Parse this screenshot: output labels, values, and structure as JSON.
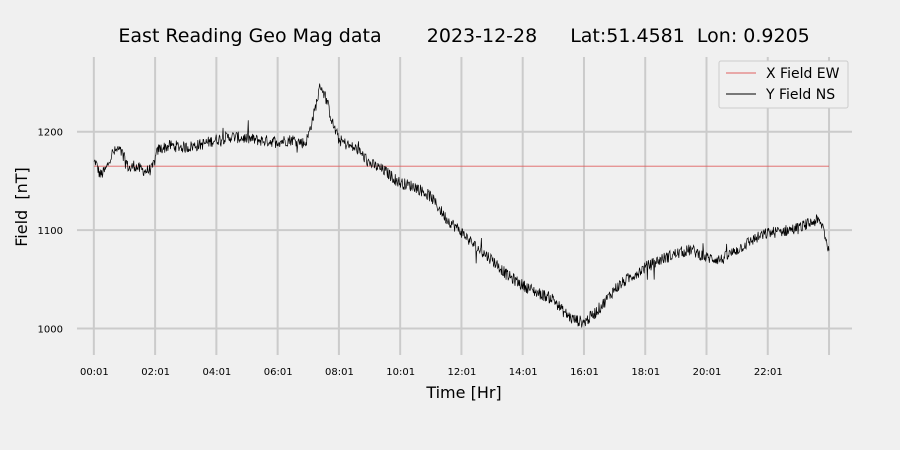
{
  "chart_data": {
    "type": "line",
    "title_parts": [
      "East Reading Geo Mag data",
      "2023-12-28",
      "Lat:51.4581  Lon: 0.9205"
    ],
    "xlabel": "Time  [Hr]",
    "ylabel": "Field  [nT]",
    "xlim": [
      -0.55,
      24.75
    ],
    "ylim": [
      973,
      1276
    ],
    "x_ticks": [
      0.017,
      2.017,
      4.017,
      6.017,
      8.017,
      10.017,
      12.017,
      14.017,
      16.017,
      18.017,
      20.017,
      22.017
    ],
    "x_tick_labels": [
      "00:01",
      "02:01",
      "04:01",
      "06:01",
      "08:01",
      "10:01",
      "12:01",
      "14:01",
      "16:01",
      "18:01",
      "20:01",
      "22:01"
    ],
    "x_gridlines": [
      0,
      2,
      4,
      6,
      8,
      10,
      12,
      14,
      16,
      18,
      20,
      22,
      24
    ],
    "y_ticks": [
      1000,
      1100,
      1200
    ],
    "y_tick_labels": [
      "1000",
      "1100",
      "1200"
    ],
    "grid": true,
    "legend_position": "top-right",
    "series": [
      {
        "name": "X Field EW",
        "color": "#e06060",
        "x": [
          0,
          24
        ],
        "y": [
          1165,
          1165
        ]
      },
      {
        "name": "Y Field NS",
        "color": "#000000",
        "noise_amplitude": 6,
        "x": [
          0,
          0.05,
          0.1,
          0.2,
          0.3,
          0.4,
          0.6,
          0.8,
          1.0,
          1.1,
          1.2,
          1.3,
          1.5,
          1.7,
          1.9,
          2.0,
          2.1,
          2.5,
          3.0,
          3.5,
          4.0,
          4.5,
          5.0,
          5.5,
          6.0,
          6.5,
          6.9,
          7.0,
          7.2,
          7.4,
          7.6,
          7.8,
          8.0,
          8.3,
          8.6,
          9.0,
          9.5,
          10.0,
          10.5,
          11.0,
          11.5,
          12.0,
          12.5,
          13.0,
          13.5,
          14.0,
          14.5,
          15.0,
          15.3,
          15.6,
          16.0,
          16.3,
          16.6,
          17.0,
          17.5,
          18.0,
          18.5,
          19.0,
          19.5,
          20.0,
          20.5,
          21.0,
          21.5,
          22.0,
          22.5,
          23.0,
          23.3,
          23.6,
          23.8,
          24.0
        ],
        "y": [
          1168,
          1170,
          1165,
          1156,
          1158,
          1162,
          1178,
          1182,
          1175,
          1165,
          1162,
          1166,
          1162,
          1160,
          1162,
          1172,
          1182,
          1186,
          1184,
          1187,
          1192,
          1195,
          1193,
          1191,
          1190,
          1192,
          1188,
          1196,
          1220,
          1248,
          1232,
          1208,
          1192,
          1186,
          1182,
          1168,
          1160,
          1148,
          1144,
          1134,
          1112,
          1098,
          1082,
          1070,
          1054,
          1044,
          1036,
          1030,
          1018,
          1010,
          1006,
          1014,
          1024,
          1040,
          1052,
          1062,
          1070,
          1076,
          1080,
          1072,
          1070,
          1080,
          1090,
          1097,
          1099,
          1102,
          1106,
          1110,
          1104,
          1078
        ]
      }
    ]
  }
}
